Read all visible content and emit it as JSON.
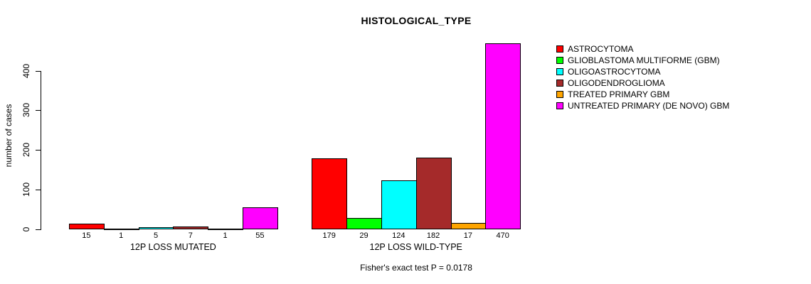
{
  "chart_data": {
    "type": "bar",
    "title": "HISTOLOGICAL_TYPE",
    "ylabel": "number of cases",
    "xlabel": "",
    "yticks": [
      0,
      100,
      200,
      300,
      400
    ],
    "ylim": [
      0,
      470
    ],
    "grid": false,
    "legend_position": "right",
    "annotation": "Fisher's exact test P = 0.0178",
    "groups": [
      {
        "label": "12P LOSS MUTATED",
        "values": [
          15,
          1,
          5,
          7,
          1,
          55
        ]
      },
      {
        "label": "12P LOSS WILD-TYPE",
        "values": [
          179,
          29,
          124,
          182,
          17,
          470
        ]
      }
    ],
    "series": [
      {
        "name": "ASTROCYTOMA",
        "color": "#ff0000"
      },
      {
        "name": "GLIOBLASTOMA MULTIFORME (GBM)",
        "color": "#00ff00"
      },
      {
        "name": "OLIGOASTROCYTOMA",
        "color": "#00ffff"
      },
      {
        "name": "OLIGODENDROGLIOMA",
        "color": "#a52a2a"
      },
      {
        "name": "TREATED PRIMARY GBM",
        "color": "#ffa500"
      },
      {
        "name": "UNTREATED PRIMARY (DE NOVO) GBM",
        "color": "#ff00ff"
      }
    ]
  }
}
